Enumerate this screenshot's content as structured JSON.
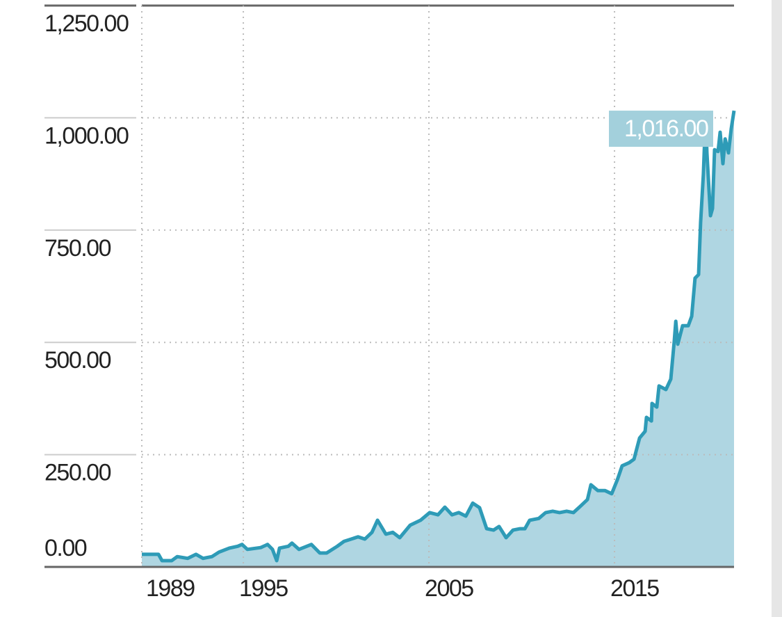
{
  "chart_data": {
    "type": "area",
    "x": [
      1989.53,
      1990.43,
      1990.62,
      1991.14,
      1991.44,
      1992.0,
      1992.45,
      1992.83,
      1993.31,
      1993.69,
      1994.25,
      1994.7,
      1994.93,
      1995.22,
      1995.94,
      1996.31,
      1996.57,
      1996.8,
      1996.95,
      1997.43,
      1997.62,
      1998.0,
      1998.67,
      1999.12,
      1999.49,
      2000.06,
      2000.43,
      2000.81,
      2001.18,
      2001.55,
      2001.93,
      2002.23,
      2002.68,
      2003.05,
      2003.43,
      2003.99,
      2004.55,
      2005.04,
      2005.49,
      2005.86,
      2006.24,
      2006.61,
      2006.99,
      2007.36,
      2007.73,
      2008.11,
      2008.48,
      2008.78,
      2009.16,
      2009.53,
      2009.91,
      2010.17,
      2010.43,
      2010.92,
      2011.29,
      2011.67,
      2012.04,
      2012.42,
      2012.79,
      2013.16,
      2013.54,
      2013.73,
      2014.1,
      2014.48,
      2014.85,
      2015.15,
      2015.41,
      2015.79,
      2016.05,
      2016.35,
      2016.65,
      2016.72,
      2016.99,
      2017.02,
      2017.28,
      2017.4,
      2017.77,
      2018.03,
      2018.22,
      2018.3,
      2018.41,
      2018.67,
      2018.97,
      2019.16,
      2019.34,
      2019.53,
      2019.64,
      2019.79,
      2019.91,
      2019.98,
      2020.17,
      2020.28,
      2020.39,
      2020.58,
      2020.69,
      2020.84,
      2020.96,
      2021.14,
      2021.29,
      2021.44
    ],
    "values": [
      28,
      28,
      14,
      14,
      23,
      19,
      28,
      19,
      23,
      33,
      42,
      46,
      50,
      39,
      43,
      50,
      39,
      14,
      42,
      46,
      53,
      39,
      50,
      31,
      31,
      46,
      57,
      62,
      67,
      62,
      77,
      104,
      73,
      77,
      65,
      93,
      104,
      121,
      116,
      133,
      116,
      121,
      113,
      142,
      132,
      85,
      82,
      90,
      65,
      82,
      85,
      85,
      104,
      108,
      121,
      124,
      121,
      124,
      121,
      135,
      150,
      183,
      170,
      170,
      163,
      194,
      225,
      232,
      240,
      287,
      302,
      333,
      325,
      364,
      356,
      403,
      395,
      418,
      503,
      547,
      496,
      537,
      537,
      558,
      643,
      651,
      767,
      875,
      1007,
      922,
      782,
      798,
      929,
      925,
      968,
      898,
      953,
      922,
      976,
      1016
    ],
    "line_color": "#2e9bb7",
    "fill_color": "#afd6e2",
    "xlim": [
      1989.53,
      2021.44
    ],
    "xticks": [
      1989,
      1995,
      2005,
      2015
    ],
    "ylim": [
      0,
      1250
    ],
    "yticks": [
      {
        "value": 0,
        "label": "0.00"
      },
      {
        "value": 250,
        "label": "250.00"
      },
      {
        "value": 500,
        "label": "500.00"
      },
      {
        "value": 750,
        "label": "750.00"
      },
      {
        "value": 1000,
        "label": "1,000.00"
      },
      {
        "value": 1250,
        "label": "1,250.00"
      }
    ],
    "grid": true,
    "annotations": [
      {
        "x": 2021.44,
        "y": 1016,
        "text": "1,016.00",
        "color": "#a3d0dc"
      }
    ]
  }
}
